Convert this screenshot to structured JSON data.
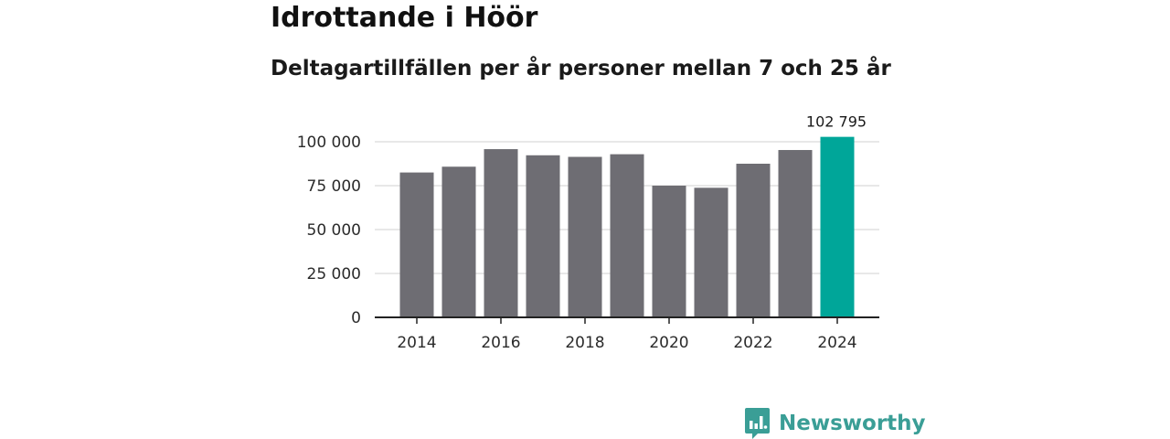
{
  "title": "Idrottande i Höör",
  "subtitle": "Deltagartillfällen per år personer mellan 7 och 25 år",
  "brand": {
    "name": "Newsworthy",
    "color": "#3a9e96",
    "icon": "newsworthy-logo-icon"
  },
  "colors": {
    "bar": "#6e6d73",
    "highlight": "#00a699",
    "grid": "#d9d9d9",
    "axis": "#222222"
  },
  "chart_data": {
    "type": "bar",
    "title": "Idrottande i Höör",
    "subtitle": "Deltagartillfällen per år personer mellan 7 och 25 år",
    "xlabel": "",
    "ylabel": "",
    "categories": [
      "2014",
      "2015",
      "2016",
      "2017",
      "2018",
      "2019",
      "2020",
      "2021",
      "2022",
      "2023",
      "2024"
    ],
    "values": [
      82500,
      85800,
      95800,
      92300,
      91400,
      92900,
      75000,
      73800,
      87500,
      95300,
      102795
    ],
    "highlight_index": 10,
    "ylim": [
      0,
      100000
    ],
    "yticks": [
      0,
      25000,
      50000,
      75000,
      100000
    ],
    "ytick_labels": [
      "0",
      "25 000",
      "50 000",
      "75 000",
      "100 000"
    ],
    "xtick_labels": [
      "2014",
      "2016",
      "2018",
      "2020",
      "2022",
      "2024"
    ],
    "data_labels": [
      {
        "index": 10,
        "text": "102 795"
      }
    ],
    "grid": true,
    "legend": "none"
  }
}
